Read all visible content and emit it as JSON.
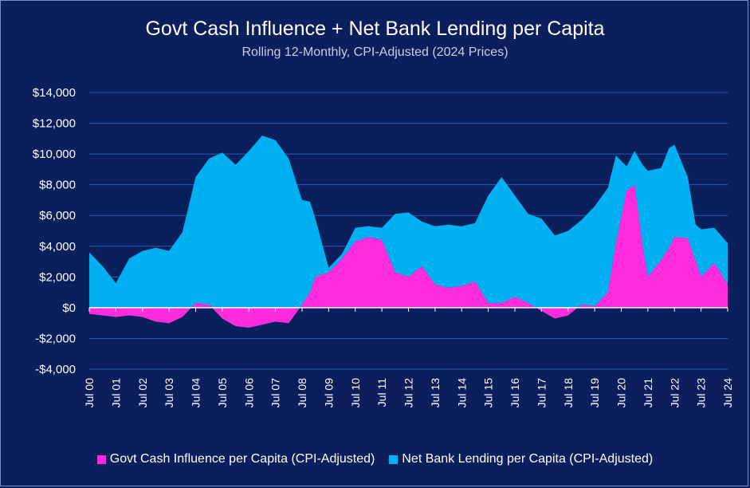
{
  "chart_data": {
    "type": "area",
    "title": "Govt Cash Influence + Net Bank Lending per Capita",
    "subtitle": "Rolling 12-Monthly, CPI-Adjusted (2024 Prices)",
    "ylim": [
      -4000,
      14000
    ],
    "yticks": [
      -4000,
      -2000,
      0,
      2000,
      4000,
      6000,
      8000,
      10000,
      12000,
      14000
    ],
    "ytick_labels": [
      "-$4,000",
      "-$2,000",
      "$0",
      "$2,000",
      "$4,000",
      "$6,000",
      "$8,000",
      "$10,000",
      "$12,000",
      "$14,000"
    ],
    "xlim": [
      2000.5,
      2024.5
    ],
    "xticks": [
      2000.5,
      2001.5,
      2002.5,
      2003.5,
      2004.5,
      2005.5,
      2006.5,
      2007.5,
      2008.5,
      2009.5,
      2010.5,
      2011.5,
      2012.5,
      2013.5,
      2014.5,
      2015.5,
      2016.5,
      2017.5,
      2018.5,
      2019.5,
      2020.5,
      2021.5,
      2022.5,
      2023.5,
      2024.5
    ],
    "xtick_labels": [
      "Jul 00",
      "Jul 01",
      "Jul 02",
      "Jul 03",
      "Jul 04",
      "Jul 05",
      "Jul 06",
      "Jul 07",
      "Jul 08",
      "Jul 09",
      "Jul 10",
      "Jul 11",
      "Jul 12",
      "Jul 13",
      "Jul 14",
      "Jul 15",
      "Jul 16",
      "Jul 17",
      "Jul 18",
      "Jul 19",
      "Jul 20",
      "Jul 21",
      "Jul 22",
      "Jul 23",
      "Jul 24"
    ],
    "grid": true,
    "legend_position": "bottom",
    "series": [
      {
        "name": "Govt Cash Influence per Capita (CPI-Adjusted)",
        "color": "#ff2bdc",
        "x": [
          2000.5,
          2001.0,
          2001.5,
          2002.0,
          2002.5,
          2003.0,
          2003.5,
          2004.0,
          2004.5,
          2005.0,
          2005.5,
          2006.0,
          2006.5,
          2007.0,
          2007.5,
          2008.0,
          2008.5,
          2008.8,
          2009.0,
          2009.5,
          2010.0,
          2010.5,
          2011.0,
          2011.5,
          2012.0,
          2012.5,
          2013.0,
          2013.5,
          2014.0,
          2014.5,
          2015.0,
          2015.5,
          2016.0,
          2016.5,
          2017.0,
          2017.5,
          2018.0,
          2018.5,
          2019.0,
          2019.5,
          2020.0,
          2020.3,
          2020.7,
          2021.0,
          2021.3,
          2021.5,
          2022.0,
          2022.3,
          2022.5,
          2023.0,
          2023.3,
          2023.5,
          2024.0,
          2024.5
        ],
        "values": [
          -400,
          -500,
          -600,
          -500,
          -600,
          -900,
          -1000,
          -600,
          300,
          200,
          -700,
          -1200,
          -1300,
          -1100,
          -900,
          -1000,
          200,
          1000,
          2000,
          2300,
          3200,
          4300,
          4600,
          4400,
          2300,
          2000,
          2700,
          1500,
          1300,
          1400,
          1700,
          300,
          300,
          700,
          300,
          -200,
          -700,
          -500,
          200,
          100,
          1000,
          4200,
          7600,
          8000,
          4000,
          2000,
          3100,
          3900,
          4600,
          4500,
          3000,
          2000,
          2900,
          1500
        ]
      },
      {
        "name": "Net Bank Lending per Capita (CPI-Adjusted)",
        "color": "#00b0f0",
        "x": [
          2000.5,
          2001.0,
          2001.5,
          2002.0,
          2002.5,
          2003.0,
          2003.5,
          2004.0,
          2004.5,
          2005.0,
          2005.5,
          2006.0,
          2006.5,
          2007.0,
          2007.5,
          2008.0,
          2008.5,
          2008.8,
          2009.0,
          2009.5,
          2010.0,
          2010.5,
          2011.0,
          2011.5,
          2012.0,
          2012.5,
          2013.0,
          2013.5,
          2014.0,
          2014.5,
          2015.0,
          2015.5,
          2016.0,
          2016.5,
          2017.0,
          2017.5,
          2018.0,
          2018.5,
          2019.0,
          2019.5,
          2020.0,
          2020.3,
          2020.7,
          2021.0,
          2021.3,
          2021.5,
          2022.0,
          2022.3,
          2022.5,
          2023.0,
          2023.3,
          2023.5,
          2024.0,
          2024.5
        ],
        "values": [
          4000,
          3200,
          2200,
          3700,
          4300,
          4800,
          4700,
          5500,
          8200,
          9500,
          10800,
          10500,
          11500,
          12300,
          11800,
          10700,
          6800,
          5900,
          3800,
          300,
          300,
          900,
          700,
          800,
          3800,
          4200,
          2900,
          3800,
          4100,
          3900,
          3800,
          7000,
          8200,
          6600,
          5800,
          6000,
          5400,
          5500,
          5500,
          6500,
          6800,
          5700,
          1600,
          2200,
          5300,
          6900,
          6000,
          6500,
          6000,
          4000,
          2400,
          3100,
          2300,
          2700
        ]
      }
    ]
  }
}
